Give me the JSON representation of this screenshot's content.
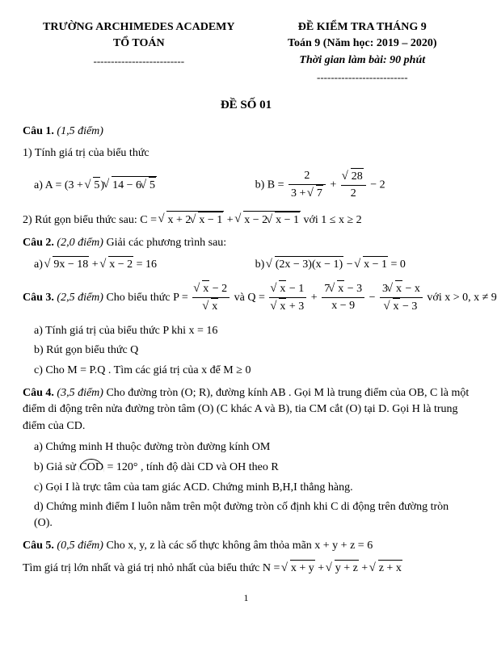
{
  "header": {
    "school_line1": "TRƯỜNG ARCHIMEDES ACADEMY",
    "school_line2": "TỔ TOÁN",
    "dash": "--------------------------",
    "exam_line1": "ĐỀ KIỂM TRA THÁNG 9",
    "exam_line2": "Toán 9 (Năm học: 2019 – 2020)",
    "exam_line3": "Thời gian làm bài: 90 phút",
    "exam_dash": "--------------------------"
  },
  "title": "ĐỀ SỐ 01",
  "q1": {
    "label": "Câu 1.",
    "points": "(1,5 điểm)",
    "p1": "1) Tính giá trị của biểu thức",
    "a_prefix": "a)  A = ",
    "a_factor1_open": "(3 + ",
    "a_factor1_sqrt": "5",
    "a_factor1_close": ")",
    "a_factor2_inner_pre": "14 − 6",
    "a_factor2_inner_sqrt": "5",
    "b_prefix": "b)  B = ",
    "b_frac1_num": "2",
    "b_frac1_den_pre": "3 + ",
    "b_frac1_den_sqrt": "7",
    "b_plus": " + ",
    "b_frac2_num_sqrt": "28",
    "b_frac2_den": "2",
    "b_tail": " − 2",
    "p2_pre": "2) Rút gọn biểu thức sau:  C = ",
    "p2_s1_pre": "x + 2",
    "p2_s1_inner": "x − 1",
    "p2_plus": " + ",
    "p2_s2_pre": "x − 2",
    "p2_s2_inner": "x − 1",
    "p2_cond": "  với 1 ≤ x ≥ 2"
  },
  "q2": {
    "label": "Câu 2.",
    "points": "(2,0 điểm)",
    "stem": " Giải các phương trình sau:",
    "a_prefix": "a)  ",
    "a_s1": "9x − 18",
    "a_plus": " + ",
    "a_s2": "x − 2",
    "a_eq": " = 16",
    "b_prefix": "b)  ",
    "b_s1": "(2x − 3)(x − 1)",
    "b_minus": " − ",
    "b_s2": "x − 1",
    "b_eq": " = 0"
  },
  "q3": {
    "label": "Câu 3.",
    "points": "(2,5 điểm)",
    "stem_pre": " Cho biểu thức  P = ",
    "P_num_pre": "",
    "P_num_sqrt": "x",
    "P_num_post": " − 2",
    "P_den_sqrt": "x",
    "and": "  và  Q = ",
    "Q1_num_sqrt": "x",
    "Q1_num_post": " − 1",
    "Q1_den_sqrt": "x",
    "Q1_den_post": " + 3",
    "plus": " + ",
    "Q2_num_pre": "7",
    "Q2_num_sqrt": "x",
    "Q2_num_post": " − 3",
    "Q2_den": "x − 9",
    "minus": " − ",
    "Q3_num_pre": "3",
    "Q3_num_sqrt": "x",
    "Q3_num_post": " − x",
    "Q3_den_sqrt": "x",
    "Q3_den_post": " − 3",
    "cond": " với x > 0, x ≠ 9",
    "a": "a) Tính giá trị của biểu thức P khi  x = 16",
    "b": "b) Rút gọn biểu thức Q",
    "c": "c) Cho  M = P.Q . Tìm các giá trị của x để  M ≥ 0"
  },
  "q4": {
    "label": "Câu 4.",
    "points": "(3,5 điểm)",
    "stem": " Cho đường tròn (O; R), đường kính  AB . Gọi M là trung điểm của OB, C là một điểm di động trên nửa đường tròn tâm (O) (C khác A và B), tia CM cắt (O) tại D. Gọi H là trung điểm của CD.",
    "a": "a) Chứng minh H thuộc đường tròn đường kính OM",
    "b_pre": "b) Giả sử ",
    "b_arc": "COD",
    "b_post": " = 120° , tính độ dài CD và OH theo R",
    "c": "c) Gọi I là trực tâm của tam giác ACD. Chứng minh B,H,I thẳng hàng.",
    "d": "d) Chứng minh điểm I luôn nằm trên một đường tròn cố định khi C di động trên đường tròn (O)."
  },
  "q5": {
    "label": "Câu 5.",
    "points": "(0,5 điểm)",
    "stem": " Cho x, y, z là các số thực không âm thỏa mãn  x + y + z = 6",
    "line2_pre": "Tìm giá trị lớn nhất và giá trị nhỏ nhất của biểu thức  N = ",
    "n_s1": "x + y",
    "n_plus1": " + ",
    "n_s2": "y + z",
    "n_plus2": " + ",
    "n_s3": "z + x"
  },
  "page": "1"
}
